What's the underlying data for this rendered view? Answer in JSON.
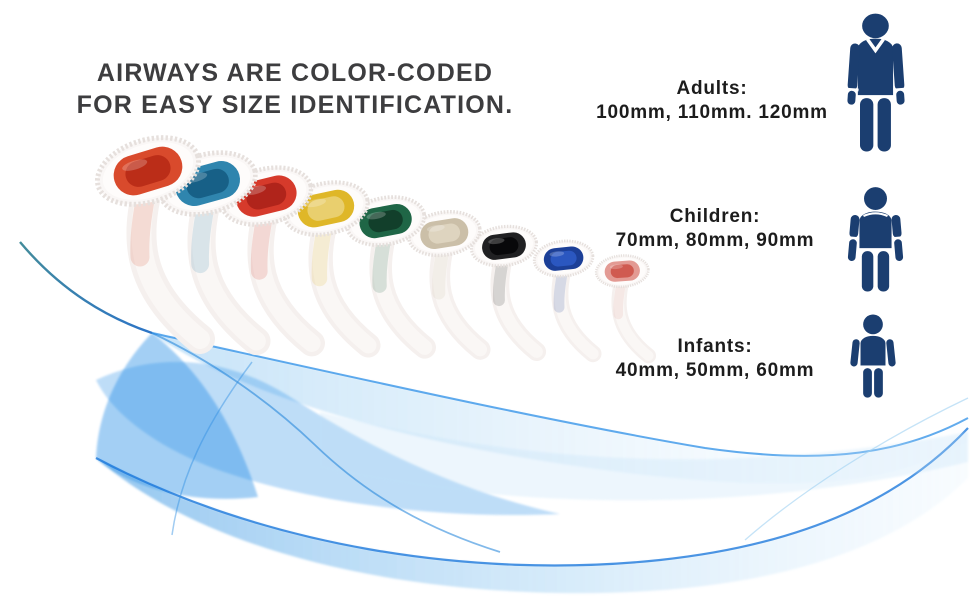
{
  "headline": {
    "line1": "AIRWAYS ARE COLOR-CODED",
    "line2": "FOR EASY SIZE IDENTIFICATION."
  },
  "size_groups": [
    {
      "id": "adults",
      "label": "Adults:",
      "sizes": "100mm, 110mm. 120mm"
    },
    {
      "id": "children",
      "label": "Children:",
      "sizes": "70mm, 80mm, 90mm"
    },
    {
      "id": "infants",
      "label": "Infants:",
      "sizes": "40mm, 50mm, 60mm"
    }
  ],
  "airways": [
    {
      "color": "red-orange",
      "outer": "#d94a2c",
      "inner": "#bb2d18"
    },
    {
      "color": "teal-blue",
      "outer": "#2f85ae",
      "inner": "#176087"
    },
    {
      "color": "red",
      "outer": "#d63a2b",
      "inner": "#b0241b"
    },
    {
      "color": "yellow",
      "outer": "#dfb728",
      "inner": "#e9cf6e"
    },
    {
      "color": "dark-green",
      "outer": "#1f6646",
      "inner": "#123f2b"
    },
    {
      "color": "cream-white",
      "outer": "#cbbfa8",
      "inner": "#ded4bf"
    },
    {
      "color": "black",
      "outer": "#202022",
      "inner": "#08080a"
    },
    {
      "color": "blue",
      "outer": "#1c3f97",
      "inner": "#2b57c0"
    },
    {
      "color": "pink",
      "outer": "#e39a93",
      "inner": "#d05a50"
    }
  ],
  "colors": {
    "icon_navy": "#1b3e70",
    "headline_text": "#3d3d3f",
    "label_text": "#1c1c1c",
    "wave_blue": "#1e88e5",
    "wave_deep": "#1272d9",
    "wave_light": "#bfe0f8"
  }
}
